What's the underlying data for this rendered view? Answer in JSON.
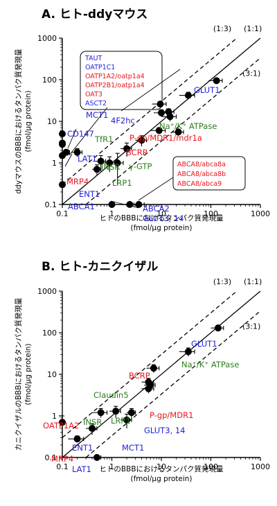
{
  "colors": {
    "blue": "#1f1fd6",
    "red": "#e8141e",
    "green": "#2e7d1e",
    "black": "#000000"
  },
  "chart_data": [
    {
      "type": "scatter",
      "title": "A. ヒト-ddyマウス",
      "xlabel": "ヒトのBBBにおけるタンパク質発現量",
      "xlabel_unit": "(fmol/µg protein)",
      "ylabel": "ddyマウスのBBBにおけるタンパク質発現量",
      "ylabel_unit": "(fmol/µg protein)",
      "x_scale": "log",
      "y_scale": "log",
      "xlim": [
        0.1,
        1000
      ],
      "ylim": [
        0.1,
        1000
      ],
      "x_ticks": [
        "0.1",
        "1",
        "10",
        "100",
        "1000"
      ],
      "y_ticks": [
        "0.1",
        "1",
        "10",
        "100",
        "1000"
      ],
      "reference_lines": [
        {
          "label": "(1:3)",
          "ratio": 3,
          "style": "dashed"
        },
        {
          "label": "(1:1)",
          "ratio": 1,
          "style": "solid"
        },
        {
          "label": "(3:1)",
          "ratio": 0.3333,
          "style": "dashed"
        }
      ],
      "points": [
        {
          "x": 130,
          "y": 95,
          "xerr": 40,
          "yerr": 10
        },
        {
          "x": 35,
          "y": 42,
          "xerr": 12,
          "yerr": 8
        },
        {
          "x": 9.5,
          "y": 26,
          "xerr": 3,
          "yerr": 3
        },
        {
          "x": 14,
          "y": 17,
          "xerr": 4,
          "yerr": 3
        },
        {
          "x": 10,
          "y": 16,
          "xerr": 3,
          "yerr": 3
        },
        {
          "x": 15,
          "y": 13,
          "xerr": 5,
          "yerr": 3
        },
        {
          "x": 22,
          "y": 5.5,
          "xerr": 6,
          "yerr": 1
        },
        {
          "x": 9,
          "y": 6,
          "xerr": 3,
          "yerr": 1
        },
        {
          "x": 4,
          "y": 3.5,
          "xerr": 1,
          "yerr": 1
        },
        {
          "x": 2.0,
          "y": 2.2,
          "xerr": 0.5,
          "yerr": 0.8
        },
        {
          "x": 1.3,
          "y": 1.0,
          "xerr": 0.4,
          "yerr": 0.7
        },
        {
          "x": 0.9,
          "y": 1.0,
          "xerr": 0.3,
          "yerr": 0.4
        },
        {
          "x": 0.5,
          "y": 0.7,
          "xerr": 0.1,
          "yerr": 0.2
        },
        {
          "x": 0.6,
          "y": 1.1,
          "xerr": 0.15,
          "yerr": 0.4
        },
        {
          "x": 0.2,
          "y": 1.8,
          "xerr": 0.05,
          "yerr": 0.4
        },
        {
          "x": 0.12,
          "y": 1.8,
          "xerr": 0.02,
          "yerr": 0.3
        },
        {
          "x": 0.1,
          "y": 1.5,
          "xerr": 0,
          "yerr": 0.2
        },
        {
          "x": 0.1,
          "y": 2.8,
          "xerr": 0,
          "yerr": 0.3
        },
        {
          "x": 0.1,
          "y": 3.0,
          "xerr": 0,
          "yerr": 0.3
        },
        {
          "x": 0.1,
          "y": 5.0,
          "xerr": 0,
          "yerr": 0.5
        },
        {
          "x": 0.1,
          "y": 0.3,
          "xerr": 0,
          "yerr": 0.05
        },
        {
          "x": 1.0,
          "y": 0.1,
          "xerr": 0.1,
          "yerr": 0
        },
        {
          "x": 3.5,
          "y": 0.1,
          "xerr": 1.0,
          "yerr": 0
        },
        {
          "x": 2.3,
          "y": 0.1,
          "xerr": 0.5,
          "yerr": 0
        }
      ],
      "annotations": [
        {
          "text": "TAUT",
          "color": "blue"
        },
        {
          "text": "OATP1C1",
          "color": "blue"
        },
        {
          "text": "OATP1A2/oatp1a4",
          "color": "red"
        },
        {
          "text": "OATP2B1/oatp1a4",
          "color": "red"
        },
        {
          "text": "OAT3",
          "color": "red"
        },
        {
          "text": "ASCT2",
          "color": "blue"
        },
        {
          "text": "GLUT1",
          "color": "blue"
        },
        {
          "text": "MCT1",
          "color": "blue"
        },
        {
          "text": "4F2hc",
          "color": "blue"
        },
        {
          "text": "Na⁺/K⁺ ATPase",
          "color": "green"
        },
        {
          "text": "CD147",
          "color": "blue"
        },
        {
          "text": "TfR1",
          "color": "green"
        },
        {
          "text": "P-gp/MDR1/mdr1a",
          "color": "red"
        },
        {
          "text": "BCRP",
          "color": "red"
        },
        {
          "text": "LAT1",
          "color": "blue"
        },
        {
          "text": "INSR",
          "color": "green"
        },
        {
          "text": "γ-GTP",
          "color": "green"
        },
        {
          "text": "MRP4",
          "color": "red"
        },
        {
          "text": "LRP1",
          "color": "green"
        },
        {
          "text": "ENT1",
          "color": "blue"
        },
        {
          "text": "ABCA8/abca8a",
          "color": "red"
        },
        {
          "text": "ABCA8/abca8b",
          "color": "red"
        },
        {
          "text": "ABCA8/abca9",
          "color": "red"
        },
        {
          "text": "ABCA1",
          "color": "blue"
        },
        {
          "text": "ABCA2",
          "color": "blue"
        },
        {
          "text": "GLUT3, 14",
          "color": "blue"
        }
      ]
    },
    {
      "type": "scatter",
      "title": "B. ヒト-カニクイザル",
      "xlabel": "ヒトのBBBにおけるタンパク質発現量",
      "xlabel_unit": "(fmol/µg protein)",
      "ylabel": "カニクイザルのBBBにおけるタンパク質発現量",
      "ylabel_unit": "(fmol/µg protein)",
      "x_scale": "log",
      "y_scale": "log",
      "xlim": [
        0.1,
        1000
      ],
      "ylim": [
        0.1,
        1000
      ],
      "x_ticks": [
        "0.1",
        "1",
        "10",
        "100",
        "1000"
      ],
      "y_ticks": [
        "0.1",
        "1",
        "10",
        "100",
        "1000"
      ],
      "reference_lines": [
        {
          "label": "(1:3)",
          "ratio": 3,
          "style": "dashed"
        },
        {
          "label": "(1:1)",
          "ratio": 1,
          "style": "solid"
        },
        {
          "label": "(3:1)",
          "ratio": 0.3333,
          "style": "dashed"
        }
      ],
      "points": [
        {
          "x": 140,
          "y": 130,
          "xerr": 40,
          "yerr": 20
        },
        {
          "x": 35,
          "y": 35,
          "xerr": 12,
          "yerr": 8
        },
        {
          "x": 7,
          "y": 14,
          "xerr": 2,
          "yerr": 3
        },
        {
          "x": 5.5,
          "y": 6.5,
          "xerr": 1.5,
          "yerr": 1.5
        },
        {
          "x": 6,
          "y": 5.5,
          "xerr": 1.5,
          "yerr": 1
        },
        {
          "x": 5.5,
          "y": 4.5,
          "xerr": 1.5,
          "yerr": 1
        },
        {
          "x": 2.5,
          "y": 1.2,
          "xerr": 0.5,
          "yerr": 0.3
        },
        {
          "x": 2.0,
          "y": 0.8,
          "xerr": 0.5,
          "yerr": 0.3
        },
        {
          "x": 1.2,
          "y": 1.3,
          "xerr": 0.3,
          "yerr": 0.4
        },
        {
          "x": 0.6,
          "y": 1.2,
          "xerr": 0.2,
          "yerr": 0.3
        },
        {
          "x": 0.4,
          "y": 0.5,
          "xerr": 0.1,
          "yerr": 0.15
        },
        {
          "x": 0.2,
          "y": 0.28,
          "xerr": 0.07,
          "yerr": 0.05
        },
        {
          "x": 0.1,
          "y": 0.7,
          "xerr": 0,
          "yerr": 0.3
        },
        {
          "x": 0.5,
          "y": 0.1,
          "xerr": 0.1,
          "yerr": 0
        }
      ],
      "annotations": [
        {
          "text": "GLUT1",
          "color": "blue"
        },
        {
          "text": "Na⁺/K⁺ ATPase",
          "color": "green"
        },
        {
          "text": "BCRP",
          "color": "red"
        },
        {
          "text": "Claudin5",
          "color": "green"
        },
        {
          "text": "P-gp/MDR1",
          "color": "red"
        },
        {
          "text": "INSR",
          "color": "green"
        },
        {
          "text": "LRP1",
          "color": "green"
        },
        {
          "text": "GLUT3, 14",
          "color": "blue"
        },
        {
          "text": "OATP1A2",
          "color": "red"
        },
        {
          "text": "ENT1",
          "color": "blue"
        },
        {
          "text": "MCT1",
          "color": "blue"
        },
        {
          "text": "MRP4",
          "color": "red"
        },
        {
          "text": "LAT1",
          "color": "blue"
        }
      ]
    }
  ]
}
